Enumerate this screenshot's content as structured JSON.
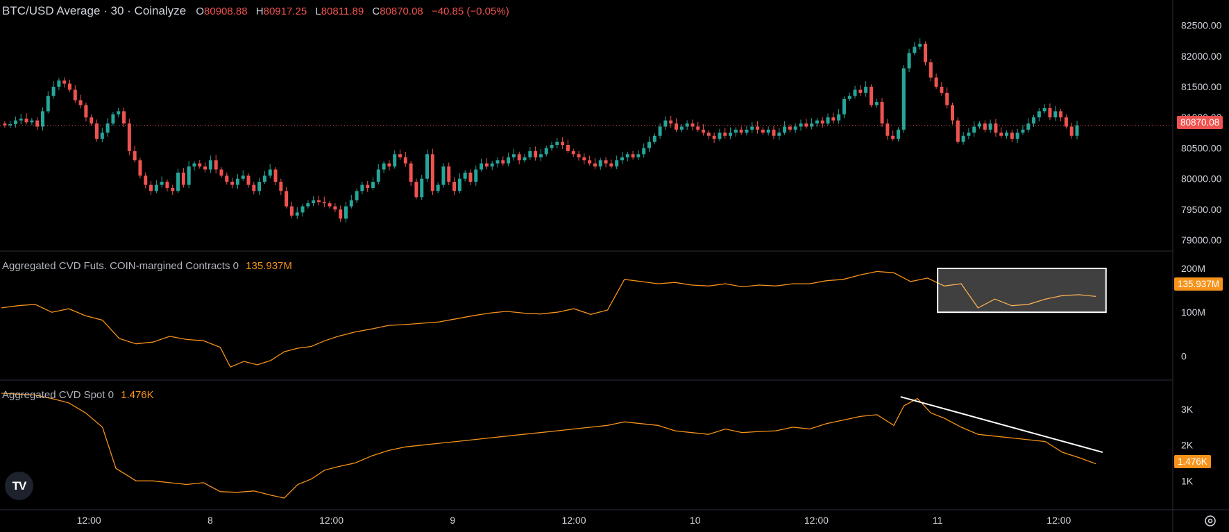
{
  "header": {
    "symbol": "BTC/USD Average · 30 · Coinalyze",
    "o_label": "O",
    "o_value": "80908.88",
    "h_label": "H",
    "h_value": "80917.25",
    "l_label": "L",
    "l_value": "80811.89",
    "c_label": "C",
    "c_value": "80870.08",
    "change": "−40.85 (−0.05%)"
  },
  "indicators": {
    "futs": {
      "name": "Aggregated CVD Futs. COIN-margined Contracts 0",
      "value": "135.937M",
      "tag": "135.937M"
    },
    "spot": {
      "name": "Aggregated CVD Spot 0",
      "value": "1.476K",
      "tag": "1.476K"
    }
  },
  "current_price_tag": "80870.08",
  "logo_text": "TV",
  "icons": {
    "settings": "gear-icon",
    "logo": "tradingview-logo-icon"
  },
  "colors": {
    "up": "#26a69a",
    "down": "#ef5350",
    "line": "#f7931a",
    "bg": "#000000",
    "grid": "#2a2e39"
  },
  "chart_data": [
    {
      "type": "candlestick",
      "title": "BTC/USD Average · 30 · Coinalyze",
      "y_ticks": [
        "82500.00",
        "82000.00",
        "81500.00",
        "81000.00",
        "80500.00",
        "80000.00",
        "79500.00",
        "79000.00"
      ],
      "ylim": [
        78900,
        82800
      ],
      "x_ticks": [
        {
          "label": "12:00",
          "t": 26
        },
        {
          "label": "8",
          "t": 62
        },
        {
          "label": "12:00",
          "t": 98
        },
        {
          "label": "9",
          "t": 134
        },
        {
          "label": "12:00",
          "t": 170
        },
        {
          "label": "10",
          "t": 206
        },
        {
          "label": "12:00",
          "t": 242
        },
        {
          "label": "11",
          "t": 278
        },
        {
          "label": "12:00",
          "t": 314
        }
      ],
      "close": [
        80870,
        80890,
        80950,
        80980,
        80920,
        80950,
        80850,
        81100,
        81350,
        81500,
        81600,
        81550,
        81450,
        81280,
        81200,
        81000,
        80900,
        80650,
        80750,
        80900,
        81050,
        81100,
        80900,
        80450,
        80300,
        80050,
        79900,
        79800,
        79900,
        79950,
        79850,
        79800,
        80100,
        79900,
        80200,
        80250,
        80200,
        80150,
        80300,
        80150,
        80050,
        79950,
        79900,
        80000,
        80050,
        79900,
        79800,
        79950,
        80050,
        80150,
        79950,
        79800,
        79550,
        79400,
        79450,
        79550,
        79600,
        79650,
        79620,
        79600,
        79550,
        79500,
        79350,
        79550,
        79650,
        79800,
        79900,
        79850,
        79950,
        80150,
        80250,
        80200,
        80400,
        80350,
        80250,
        79950,
        79700,
        80000,
        80400,
        79800,
        79900,
        80200,
        79950,
        79800,
        80000,
        80100,
        79950,
        80150,
        80250,
        80200,
        80250,
        80300,
        80250,
        80350,
        80400,
        80300,
        80350,
        80450,
        80350,
        80400,
        80500,
        80550,
        80600,
        80550,
        80450,
        80400,
        80350,
        80300,
        80250,
        80200,
        80300,
        80250,
        80200,
        80300,
        80350,
        80400,
        80350,
        80400,
        80500,
        80600,
        80700,
        80850,
        80950,
        80900,
        80800,
        80850,
        80900,
        80850,
        80800,
        80750,
        80700,
        80650,
        80750,
        80700,
        80750,
        80800,
        80750,
        80800,
        80850,
        80800,
        80750,
        80800,
        80700,
        80750,
        80850,
        80800,
        80850,
        80900,
        80850,
        80900,
        80950,
        80900,
        81000,
        80950,
        81050,
        81300,
        81350,
        81450,
        81400,
        81500,
        81200,
        81250,
        80900,
        80700,
        80650,
        80800,
        81800,
        82050,
        82150,
        82200,
        81900,
        81650,
        81500,
        81400,
        81200,
        80950,
        80600,
        80700,
        80750,
        80850,
        80900,
        80800,
        80900,
        80750,
        80700,
        80750,
        80650,
        80750,
        80800,
        80900,
        81000,
        81100,
        81150,
        81000,
        81100,
        81000,
        80850,
        80700,
        80870
      ],
      "open_note": "each candle opens at the previous close"
    },
    {
      "type": "line",
      "title": "Aggregated CVD Futs. COIN-margined Contracts 0",
      "y_ticks": [
        "200M",
        "100M",
        "0"
      ],
      "ylim": [
        -50,
        230
      ],
      "points": [
        [
          0,
          110
        ],
        [
          5,
          115
        ],
        [
          10,
          118
        ],
        [
          15,
          100
        ],
        [
          20,
          108
        ],
        [
          25,
          92
        ],
        [
          30,
          82
        ],
        [
          35,
          40
        ],
        [
          40,
          28
        ],
        [
          45,
          32
        ],
        [
          50,
          45
        ],
        [
          55,
          38
        ],
        [
          60,
          35
        ],
        [
          65,
          20
        ],
        [
          68,
          -25
        ],
        [
          72,
          -12
        ],
        [
          76,
          -20
        ],
        [
          80,
          -10
        ],
        [
          84,
          10
        ],
        [
          88,
          18
        ],
        [
          92,
          22
        ],
        [
          96,
          35
        ],
        [
          100,
          45
        ],
        [
          105,
          55
        ],
        [
          110,
          62
        ],
        [
          115,
          70
        ],
        [
          120,
          72
        ],
        [
          125,
          75
        ],
        [
          130,
          78
        ],
        [
          135,
          85
        ],
        [
          140,
          92
        ],
        [
          145,
          98
        ],
        [
          150,
          102
        ],
        [
          155,
          98
        ],
        [
          160,
          96
        ],
        [
          165,
          100
        ],
        [
          170,
          108
        ],
        [
          175,
          95
        ],
        [
          180,
          105
        ],
        [
          185,
          175
        ],
        [
          190,
          170
        ],
        [
          195,
          165
        ],
        [
          200,
          168
        ],
        [
          205,
          162
        ],
        [
          210,
          160
        ],
        [
          215,
          165
        ],
        [
          220,
          158
        ],
        [
          225,
          162
        ],
        [
          230,
          160
        ],
        [
          235,
          165
        ],
        [
          240,
          165
        ],
        [
          245,
          172
        ],
        [
          250,
          175
        ],
        [
          255,
          185
        ],
        [
          260,
          193
        ],
        [
          265,
          190
        ],
        [
          270,
          170
        ],
        [
          275,
          178
        ],
        [
          280,
          160
        ],
        [
          285,
          165
        ],
        [
          290,
          110
        ],
        [
          295,
          130
        ],
        [
          300,
          115
        ],
        [
          305,
          118
        ],
        [
          310,
          130
        ],
        [
          315,
          138
        ],
        [
          320,
          140
        ],
        [
          325,
          136
        ]
      ]
    },
    {
      "type": "line",
      "title": "Aggregated CVD Spot 0",
      "y_ticks": [
        "3K",
        "2K",
        "1K"
      ],
      "ylim": [
        250,
        3700
      ],
      "points": [
        [
          0,
          3450
        ],
        [
          5,
          3420
        ],
        [
          10,
          3400
        ],
        [
          15,
          3300
        ],
        [
          20,
          3180
        ],
        [
          25,
          2900
        ],
        [
          30,
          2500
        ],
        [
          34,
          1350
        ],
        [
          40,
          1000
        ],
        [
          45,
          1000
        ],
        [
          50,
          950
        ],
        [
          55,
          900
        ],
        [
          60,
          950
        ],
        [
          65,
          700
        ],
        [
          70,
          680
        ],
        [
          75,
          720
        ],
        [
          80,
          600
        ],
        [
          84,
          520
        ],
        [
          88,
          900
        ],
        [
          92,
          1050
        ],
        [
          96,
          1300
        ],
        [
          100,
          1400
        ],
        [
          105,
          1500
        ],
        [
          110,
          1700
        ],
        [
          115,
          1850
        ],
        [
          120,
          1950
        ],
        [
          125,
          2000
        ],
        [
          130,
          2050
        ],
        [
          135,
          2100
        ],
        [
          140,
          2150
        ],
        [
          145,
          2200
        ],
        [
          150,
          2250
        ],
        [
          155,
          2300
        ],
        [
          160,
          2350
        ],
        [
          165,
          2400
        ],
        [
          170,
          2450
        ],
        [
          175,
          2500
        ],
        [
          180,
          2550
        ],
        [
          185,
          2650
        ],
        [
          190,
          2600
        ],
        [
          195,
          2550
        ],
        [
          200,
          2400
        ],
        [
          205,
          2350
        ],
        [
          210,
          2300
        ],
        [
          215,
          2450
        ],
        [
          220,
          2350
        ],
        [
          225,
          2380
        ],
        [
          230,
          2400
        ],
        [
          235,
          2500
        ],
        [
          240,
          2450
        ],
        [
          245,
          2600
        ],
        [
          250,
          2700
        ],
        [
          255,
          2800
        ],
        [
          260,
          2850
        ],
        [
          265,
          2550
        ],
        [
          268,
          3100
        ],
        [
          272,
          3300
        ],
        [
          276,
          2900
        ],
        [
          280,
          2750
        ],
        [
          285,
          2500
        ],
        [
          290,
          2300
        ],
        [
          295,
          2250
        ],
        [
          300,
          2200
        ],
        [
          305,
          2150
        ],
        [
          310,
          2100
        ],
        [
          315,
          1800
        ],
        [
          320,
          1650
        ],
        [
          325,
          1476
        ]
      ],
      "trendline": [
        [
          267,
          3350
        ],
        [
          327,
          1800
        ]
      ]
    }
  ]
}
